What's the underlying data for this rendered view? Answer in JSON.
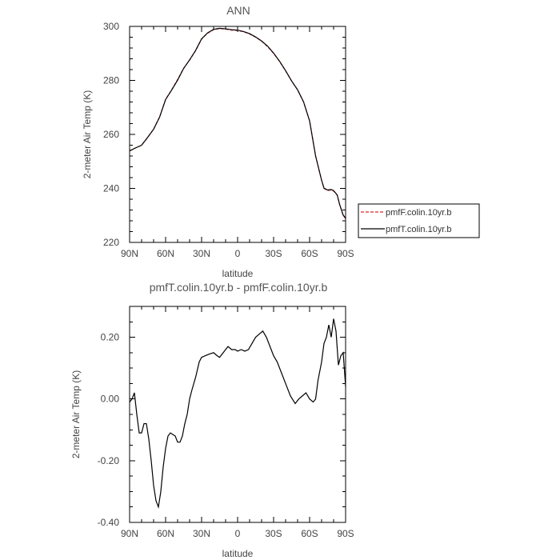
{
  "chart_data": [
    {
      "type": "line",
      "title": "ANN",
      "xlabel": "latitude",
      "ylabel": "2-meter Air Temp (K)",
      "xlim": [
        90,
        -90
      ],
      "ylim": [
        220,
        300
      ],
      "x_ticks": [
        90,
        60,
        30,
        0,
        -30,
        -60,
        -90
      ],
      "x_tick_labels": [
        "90N",
        "60N",
        "30N",
        "0",
        "30S",
        "60S",
        "90S"
      ],
      "y_ticks": [
        220,
        240,
        260,
        280,
        300
      ],
      "y_tick_labels": [
        "220",
        "240",
        "260",
        "280",
        "300"
      ],
      "legend": {
        "placement": "right",
        "entries": [
          "pmfF.colin.10yr.b",
          "pmfT.colin.10yr.b"
        ]
      },
      "series": [
        {
          "name": "pmfF.colin.10yr.b",
          "color": "#d62728",
          "dash": "dashed",
          "x": [
            90,
            85,
            80,
            75,
            70,
            65,
            60,
            55,
            50,
            45,
            40,
            35,
            30,
            25,
            20,
            15,
            10,
            5,
            0,
            -5,
            -10,
            -15,
            -20,
            -25,
            -30,
            -35,
            -40,
            -45,
            -50,
            -55,
            -60,
            -65,
            -70,
            -72,
            -75,
            -78,
            -80,
            -83,
            -85,
            -88,
            -90
          ],
          "y": [
            253.9,
            255.0,
            256.0,
            258.8,
            262.0,
            266.5,
            273.0,
            276.5,
            280.3,
            284.5,
            287.5,
            291.0,
            295.3,
            297.5,
            298.8,
            299.2,
            299.0,
            298.6,
            298.5,
            298.0,
            297.2,
            296.0,
            294.5,
            292.5,
            290.0,
            287.0,
            283.5,
            279.8,
            276.5,
            272.0,
            265.0,
            252.0,
            243.0,
            240.0,
            239.2,
            239.4,
            239.0,
            237.5,
            234.0,
            230.0,
            228.8
          ]
        },
        {
          "name": "pmfT.colin.10yr.b",
          "color": "#000000",
          "dash": "solid",
          "x": [
            90,
            85,
            80,
            75,
            70,
            65,
            60,
            55,
            50,
            45,
            40,
            35,
            30,
            25,
            20,
            15,
            10,
            5,
            0,
            -5,
            -10,
            -15,
            -20,
            -25,
            -30,
            -35,
            -40,
            -45,
            -50,
            -55,
            -60,
            -65,
            -70,
            -72,
            -75,
            -78,
            -80,
            -83,
            -85,
            -88,
            -90
          ],
          "y": [
            253.9,
            255.0,
            256.0,
            258.9,
            261.9,
            266.4,
            272.9,
            276.4,
            280.1,
            284.4,
            287.6,
            291.1,
            295.4,
            297.6,
            298.9,
            299.3,
            299.1,
            298.8,
            298.6,
            298.1,
            297.3,
            296.1,
            294.6,
            292.7,
            290.1,
            287.1,
            283.6,
            279.8,
            276.5,
            272.0,
            265.0,
            252.0,
            243.0,
            240.1,
            239.4,
            239.6,
            239.2,
            237.6,
            234.1,
            230.1,
            229.0
          ]
        }
      ]
    },
    {
      "type": "line",
      "title": "pmfT.colin.10yr.b - pmfF.colin.10yr.b",
      "xlabel": "latitude",
      "ylabel": "2-meter Air Temp (K)",
      "xlim": [
        90,
        -90
      ],
      "ylim": [
        -0.4,
        0.3
      ],
      "x_ticks": [
        90,
        60,
        30,
        0,
        -30,
        -60,
        -90
      ],
      "x_tick_labels": [
        "90N",
        "60N",
        "30N",
        "0",
        "30S",
        "60S",
        "90S"
      ],
      "y_ticks": [
        -0.4,
        -0.2,
        0.0,
        0.2
      ],
      "y_tick_labels": [
        "-0.40",
        "-0.20",
        "0.00",
        "0.20"
      ],
      "series": [
        {
          "color": "#000000",
          "dash": "solid",
          "x": [
            90,
            88,
            86,
            84,
            82,
            80,
            78,
            76,
            74,
            72,
            70,
            68,
            66,
            64,
            62,
            60,
            58,
            56,
            54,
            52,
            50,
            48,
            46,
            44,
            42,
            40,
            38,
            35,
            32,
            30,
            27,
            24,
            20,
            17,
            15,
            12,
            10,
            8,
            5,
            2,
            0,
            -3,
            -6,
            -9,
            -12,
            -15,
            -18,
            -21,
            -24,
            -27,
            -30,
            -33,
            -36,
            -40,
            -44,
            -48,
            -51,
            -54,
            -57,
            -60,
            -63,
            -65,
            -67,
            -70,
            -72,
            -74,
            -76,
            -78,
            -80,
            -82,
            -84,
            -86,
            -88,
            -90
          ],
          "y": [
            -0.01,
            0.0,
            0.02,
            -0.05,
            -0.11,
            -0.11,
            -0.08,
            -0.08,
            -0.13,
            -0.2,
            -0.28,
            -0.33,
            -0.35,
            -0.3,
            -0.22,
            -0.16,
            -0.12,
            -0.11,
            -0.115,
            -0.12,
            -0.14,
            -0.14,
            -0.12,
            -0.08,
            -0.05,
            0.0,
            0.03,
            0.07,
            0.12,
            0.135,
            0.14,
            0.145,
            0.15,
            0.14,
            0.135,
            0.15,
            0.16,
            0.17,
            0.16,
            0.16,
            0.155,
            0.16,
            0.155,
            0.16,
            0.18,
            0.2,
            0.21,
            0.22,
            0.2,
            0.17,
            0.14,
            0.12,
            0.09,
            0.05,
            0.01,
            -0.015,
            0.0,
            0.01,
            0.02,
            0.0,
            -0.01,
            0.0,
            0.06,
            0.12,
            0.18,
            0.2,
            0.24,
            0.2,
            0.26,
            0.22,
            0.11,
            0.14,
            0.15,
            0.04
          ]
        }
      ]
    }
  ]
}
